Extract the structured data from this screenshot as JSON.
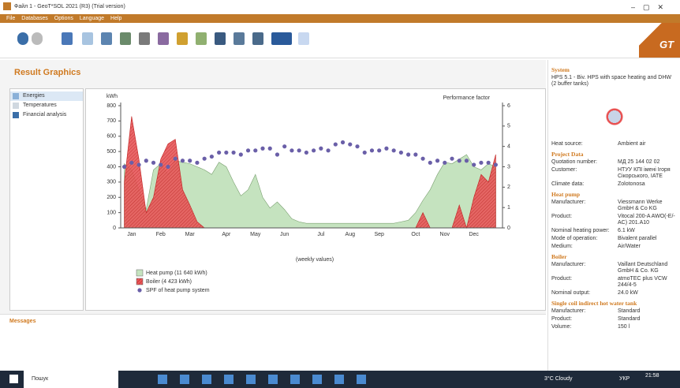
{
  "window": {
    "title": "Файл 1 - GeoT*SOL 2021 (R3) (Trial version)",
    "menu": [
      "File",
      "Databases",
      "Options",
      "Language",
      "Help"
    ],
    "logo": "GT"
  },
  "page_title": "Result Graphics",
  "nav": [
    "Energies",
    "Temperatures",
    "Financial analysis"
  ],
  "messages": {
    "title": "Messages"
  },
  "chart_data": {
    "type": "area",
    "ylabel": "kWh",
    "y2label": "Performance factor",
    "note": "(weekly values)",
    "categories": [
      null,
      "Jan",
      null,
      null,
      null,
      "Feb",
      null,
      null,
      null,
      "Mar",
      null,
      null,
      null,
      null,
      "Apr",
      null,
      null,
      null,
      "May",
      null,
      null,
      null,
      "Jun",
      null,
      null,
      null,
      null,
      "Jul",
      null,
      null,
      null,
      "Aug",
      null,
      null,
      null,
      "Sep",
      null,
      null,
      null,
      null,
      "Oct",
      null,
      null,
      null,
      "Nov",
      null,
      null,
      null,
      "Dec",
      null,
      null,
      null
    ],
    "series": [
      {
        "name": "Heat pump (11 640 kWh)",
        "color": "#c5e3bf",
        "values": [
          420,
          380,
          250,
          120,
          380,
          420,
          350,
          440,
          430,
          420,
          400,
          380,
          350,
          430,
          400,
          300,
          210,
          250,
          350,
          200,
          130,
          170,
          120,
          60,
          40,
          30,
          30,
          30,
          30,
          30,
          30,
          30,
          30,
          30,
          30,
          30,
          30,
          30,
          40,
          50,
          100,
          180,
          250,
          350,
          430,
          420,
          450,
          480,
          400,
          380,
          420,
          400
        ]
      },
      {
        "name": "Boiler (4 423 kWh)",
        "color": "#e8585a",
        "values": [
          300,
          730,
          450,
          100,
          200,
          450,
          550,
          580,
          250,
          150,
          40,
          0,
          0,
          0,
          0,
          0,
          0,
          0,
          0,
          0,
          0,
          0,
          0,
          0,
          0,
          0,
          0,
          0,
          0,
          0,
          0,
          0,
          0,
          0,
          0,
          0,
          0,
          0,
          0,
          0,
          0,
          100,
          0,
          0,
          0,
          0,
          150,
          0,
          200,
          350,
          300,
          480
        ]
      },
      {
        "name": "SPF of heat pump system",
        "color": "#6a5fa8",
        "axis": "y2",
        "values": [
          3.0,
          3.2,
          3.1,
          3.3,
          3.2,
          3.1,
          3.0,
          3.4,
          3.3,
          3.3,
          3.2,
          3.4,
          3.5,
          3.7,
          3.7,
          3.7,
          3.6,
          3.8,
          3.8,
          3.9,
          3.9,
          3.6,
          4.0,
          3.8,
          3.8,
          3.7,
          3.8,
          3.9,
          3.8,
          4.1,
          4.2,
          4.1,
          4.0,
          3.7,
          3.8,
          3.8,
          3.9,
          3.8,
          3.7,
          3.6,
          3.6,
          3.4,
          3.2,
          3.3,
          3.2,
          3.4,
          3.3,
          3.3,
          3.1,
          3.2,
          3.2,
          3.1
        ]
      }
    ],
    "ylim": [
      0,
      800
    ],
    "yticks": [
      0,
      100,
      200,
      300,
      400,
      500,
      600,
      700,
      800
    ],
    "y2lim": [
      0,
      6
    ],
    "y2ticks": [
      0,
      1,
      2,
      3,
      4,
      5,
      6
    ]
  },
  "right_panel": {
    "sections": [
      {
        "title": "System",
        "description": "HPS 5.1 - Biv. HPS with space heating and DHW (2 buffer tanks)",
        "rows": [
          [
            "Heat source:",
            "Ambient air"
          ]
        ]
      },
      {
        "title": "Project Data",
        "rows": [
          [
            "Quotation number:",
            "МД 25 144 02 02"
          ],
          [
            "Customer:",
            "НТУУ КПІ імені Ігоря Сікорського, ІАТЕ"
          ],
          [
            "Climate data:",
            "Zolotonosa"
          ]
        ]
      },
      {
        "title": "Heat pump",
        "rows": [
          [
            "Manufacturer:",
            "Viessmann Werke GmbH & Co KG"
          ],
          [
            "Product:",
            "Vitocal 200-A AWO(-E/-AC) 201.A10"
          ],
          [
            "Nominal heating power:",
            "6.1 kW"
          ],
          [
            "Mode of operation:",
            "Bivalent parallel"
          ],
          [
            "Medium:",
            "Air/Water"
          ]
        ]
      },
      {
        "title": "Boiler",
        "rows": [
          [
            "Manufacturer:",
            "Vaillant Deutschland GmbH & Co. KG"
          ],
          [
            "Product:",
            "atmoTEC plus VCW 244/4-5"
          ],
          [
            "Nominal output:",
            "24.0 kW"
          ]
        ]
      },
      {
        "title": "Single coil indirect hot water tank",
        "rows": [
          [
            "Manufacturer:",
            "Standard"
          ],
          [
            "Product:",
            "Standard"
          ],
          [
            "Volume:",
            "150 l"
          ]
        ]
      }
    ]
  },
  "taskbar": {
    "search": "Пошук",
    "weather": "3°C Cloudy",
    "lang": "УКР",
    "time": "21:58"
  }
}
